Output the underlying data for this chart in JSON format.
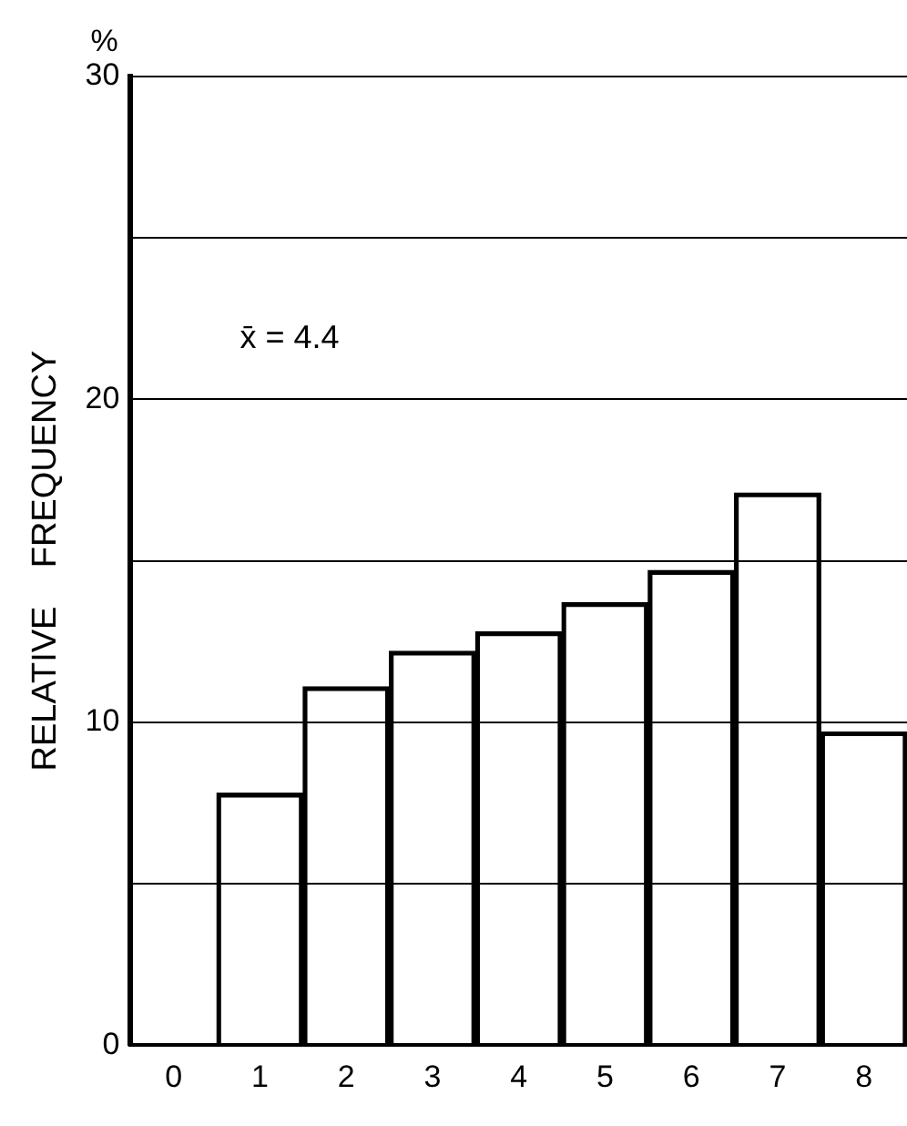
{
  "chart_data": {
    "type": "bar",
    "ylabel": "RELATIVE    FREQUENCY",
    "categories": [
      "0",
      "1",
      "2",
      "3",
      "4",
      "5",
      "6",
      "7",
      "8"
    ],
    "values": [
      0,
      7.8,
      11.1,
      12.2,
      12.8,
      13.7,
      14.7,
      17.1,
      9.7
    ],
    "color": "#000000",
    "ylim": [
      0,
      30
    ],
    "yticks": [
      0,
      {
        "value": 5,
        "label": null
      },
      10,
      {
        "value": 15,
        "label": null
      },
      20,
      {
        "value": 25,
        "label": null
      },
      30
    ],
    "grid": "y",
    "legend": false,
    "annotations": [
      "%",
      "x̄ = 4.4"
    ]
  }
}
